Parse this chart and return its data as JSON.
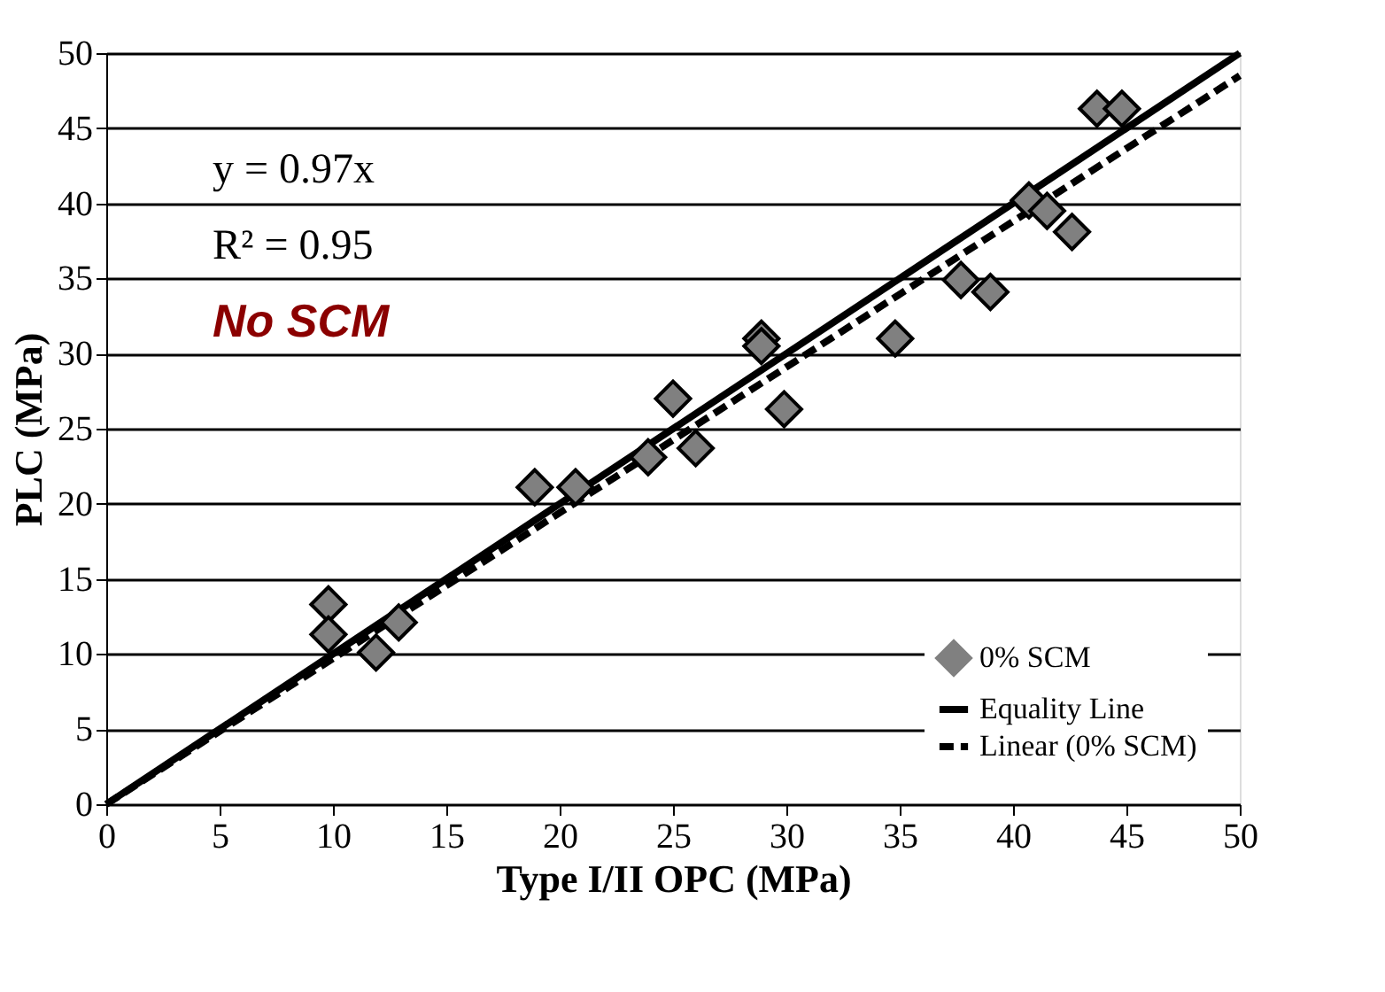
{
  "chart_data": {
    "type": "scatter",
    "xlabel": "Type I/II OPC (MPa)",
    "ylabel": "PLC (MPa)",
    "xlim": [
      0,
      50
    ],
    "ylim": [
      0,
      50
    ],
    "xticks": [
      0,
      5,
      10,
      15,
      20,
      25,
      30,
      35,
      40,
      45,
      50
    ],
    "yticks": [
      0,
      5,
      10,
      15,
      20,
      25,
      30,
      35,
      40,
      45,
      50
    ],
    "grid": "y",
    "legend": "bottom right",
    "series": [
      {
        "name": "0% SCM",
        "type": "scatter",
        "marker": "diamond",
        "color": "#808080",
        "x": [
          9.8,
          9.8,
          11.9,
          12.9,
          18.9,
          20.7,
          23.9,
          25,
          26,
          28.9,
          28.9,
          29.9,
          34.8,
          37.7,
          39,
          40.7,
          41.5,
          42.6,
          43.7,
          44.8
        ],
        "values": [
          13.3,
          11.3,
          10.1,
          12.1,
          21.1,
          21.1,
          23.1,
          27,
          23.7,
          31,
          30.5,
          26.3,
          31,
          34.9,
          34.1,
          40.2,
          39.5,
          38.1,
          46.3,
          46.3
        ]
      },
      {
        "name": "Equality Line",
        "type": "line",
        "marker": "none",
        "color": "#000000",
        "line_style": "solid",
        "x": [
          0,
          50
        ],
        "values": [
          0,
          50
        ]
      },
      {
        "name": "Linear (0% SCM)",
        "type": "line",
        "marker": "none",
        "color": "#000000",
        "line_style": "dashed",
        "x": [
          0,
          50
        ],
        "values": [
          0,
          48.5
        ]
      }
    ],
    "annotations": [
      "y = 0.97x",
      "R² = 0.95",
      "No SCM"
    ]
  }
}
